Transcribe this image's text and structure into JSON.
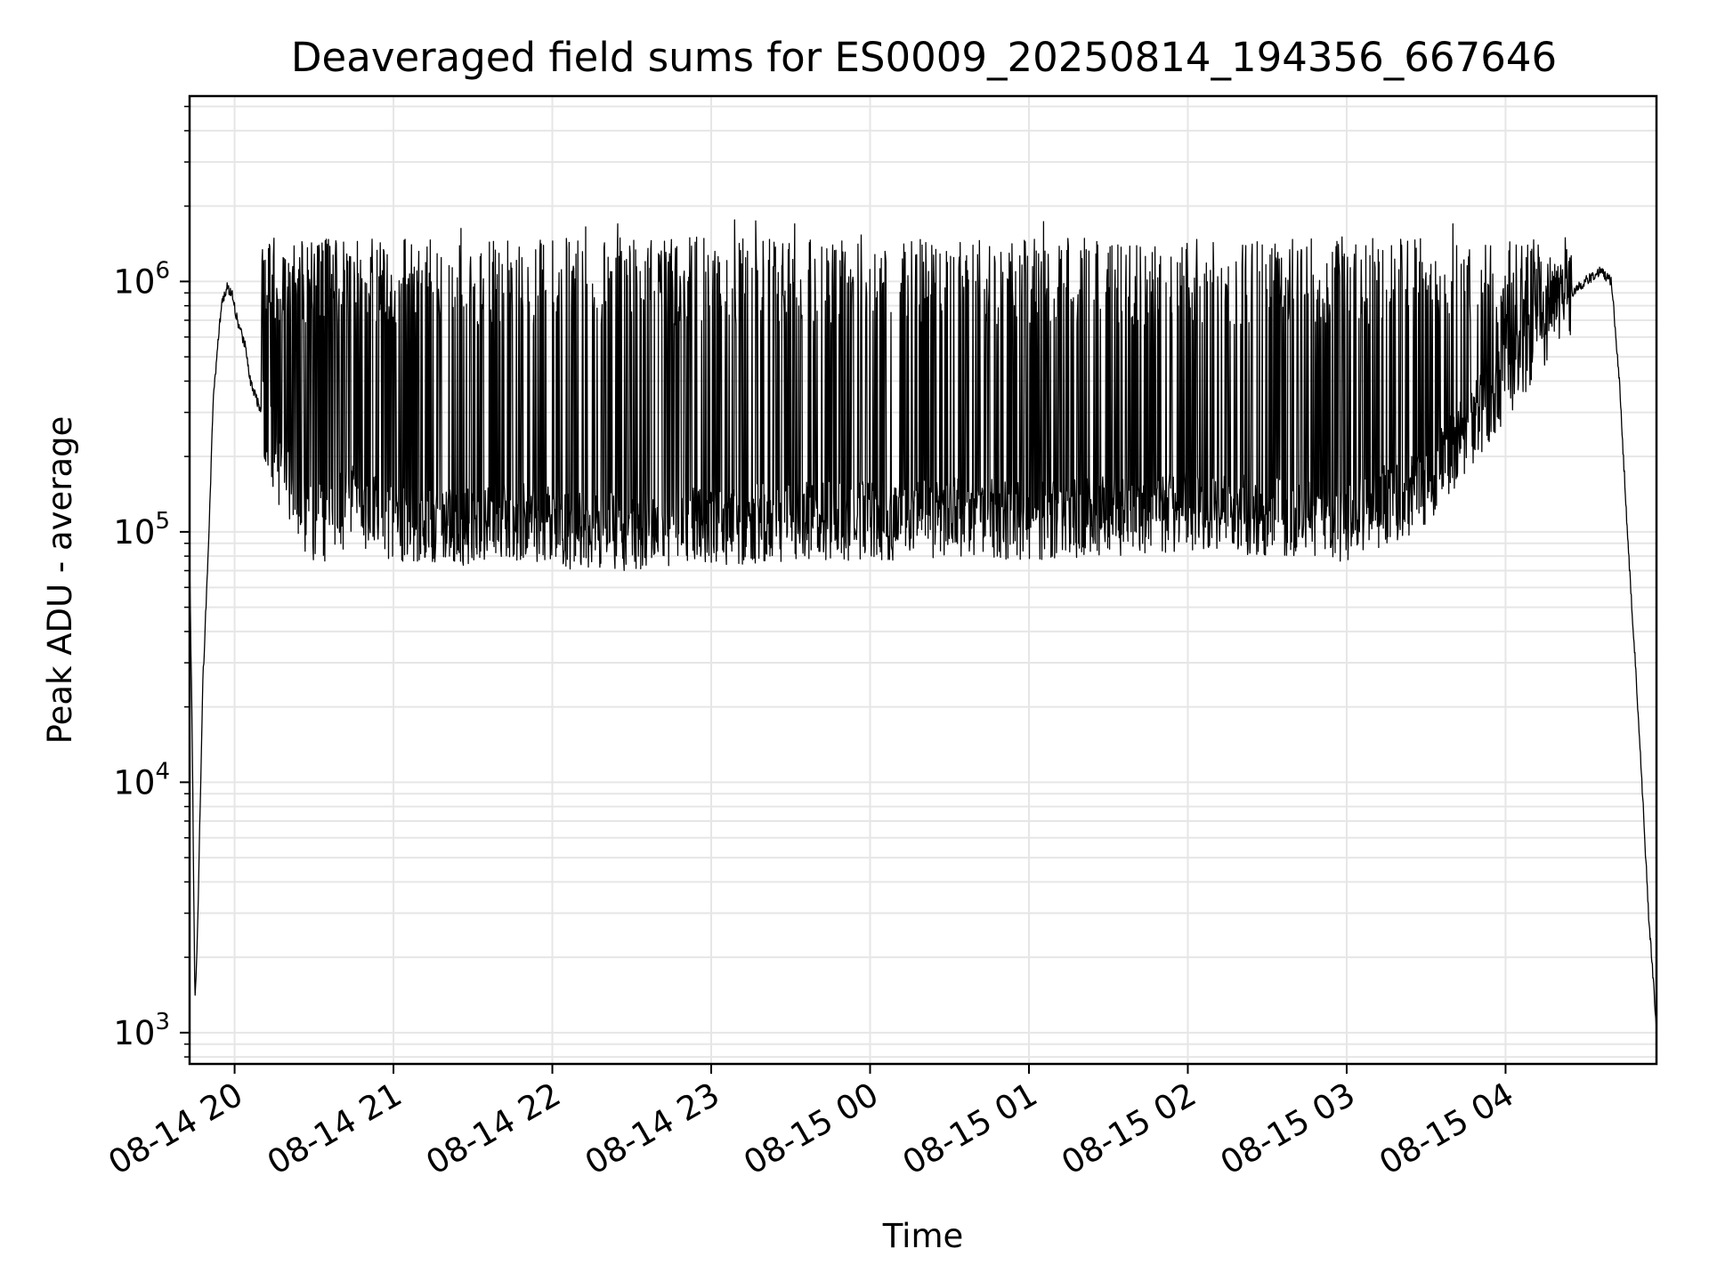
{
  "chart_data": {
    "type": "line",
    "title": "Deaveraged field sums for ES0009_20250814_194356_667646",
    "xlabel": "Time",
    "ylabel": "Peak ADU - average",
    "yscale": "log",
    "ylim": [
      750,
      5500000
    ],
    "xlim": [
      "2025-08-14 19:43",
      "2025-08-15 04:57"
    ],
    "grid": true,
    "line_color": "#000000",
    "grid_color": "#e6e6e6",
    "x_ticks": [
      {
        "value": "2025-08-14 20:00",
        "label": "08-14 20"
      },
      {
        "value": "2025-08-14 21:00",
        "label": "08-14 21"
      },
      {
        "value": "2025-08-14 22:00",
        "label": "08-14 22"
      },
      {
        "value": "2025-08-14 23:00",
        "label": "08-14 23"
      },
      {
        "value": "2025-08-15 00:00",
        "label": "08-15 00"
      },
      {
        "value": "2025-08-15 01:00",
        "label": "08-15 01"
      },
      {
        "value": "2025-08-15 02:00",
        "label": "08-15 02"
      },
      {
        "value": "2025-08-15 03:00",
        "label": "08-15 03"
      },
      {
        "value": "2025-08-15 04:00",
        "label": "08-15 04"
      }
    ],
    "y_ticks": [
      {
        "value": 1000,
        "base": "10",
        "exp": "3"
      },
      {
        "value": 10000,
        "base": "10",
        "exp": "4"
      },
      {
        "value": 100000,
        "base": "10",
        "exp": "5"
      },
      {
        "value": 1000000,
        "base": "10",
        "exp": "6"
      }
    ],
    "series": [
      {
        "x": [
          "2025-08-14 19:43",
          "2025-08-14 19:44",
          "2025-08-14 19:45",
          "2025-08-14 19:46",
          "2025-08-14 19:47",
          "2025-08-14 19:48",
          "2025-08-14 19:50",
          "2025-08-14 19:52",
          "2025-08-14 19:55",
          "2025-08-14 19:57",
          "2025-08-14 19:59",
          "2025-08-14 20:01",
          "2025-08-14 20:04",
          "2025-08-14 20:06",
          "2025-08-14 20:10",
          "2025-08-14 20:15",
          "2025-08-14 20:20",
          "2025-08-14 20:25",
          "2025-08-14 20:30",
          "2025-08-14 20:35",
          "2025-08-14 20:40",
          "2025-08-14 20:45",
          "2025-08-14 20:50",
          "2025-08-14 20:55",
          "2025-08-14 21:00",
          "2025-08-14 21:10",
          "2025-08-14 21:20",
          "2025-08-14 21:30",
          "2025-08-14 21:40",
          "2025-08-14 21:50",
          "2025-08-14 22:00",
          "2025-08-14 22:15",
          "2025-08-14 22:30",
          "2025-08-14 22:45",
          "2025-08-14 23:00",
          "2025-08-14 23:30",
          "2025-08-15 00:00",
          "2025-08-15 00:30",
          "2025-08-15 01:00",
          "2025-08-15 01:30",
          "2025-08-15 02:00",
          "2025-08-15 02:30",
          "2025-08-15 03:00",
          "2025-08-15 03:30",
          "2025-08-15 04:00",
          "2025-08-15 04:20",
          "2025-08-15 04:30",
          "2025-08-15 04:36",
          "2025-08-15 04:40",
          "2025-08-15 04:43",
          "2025-08-15 04:46",
          "2025-08-15 04:49",
          "2025-08-15 04:52",
          "2025-08-15 04:54",
          "2025-08-15 04:56",
          "2025-08-15 04:57"
        ],
        "y": [
          80000,
          15000,
          1300,
          2500,
          8000,
          25000,
          80000,
          350000,
          800000,
          950000,
          900000,
          700000,
          550000,
          400000,
          300000,
          200000,
          150000,
          120000,
          110000,
          110000,
          120000,
          130000,
          120000,
          115000,
          110000,
          110000,
          105000,
          105000,
          110000,
          110000,
          105000,
          100000,
          100000,
          105000,
          105000,
          110000,
          110000,
          115000,
          110000,
          115000,
          120000,
          115000,
          110000,
          150000,
          400000,
          800000,
          1000000,
          1100000,
          1000000,
          400000,
          100000,
          30000,
          8000,
          3000,
          1500,
          1000
        ]
      }
    ]
  }
}
